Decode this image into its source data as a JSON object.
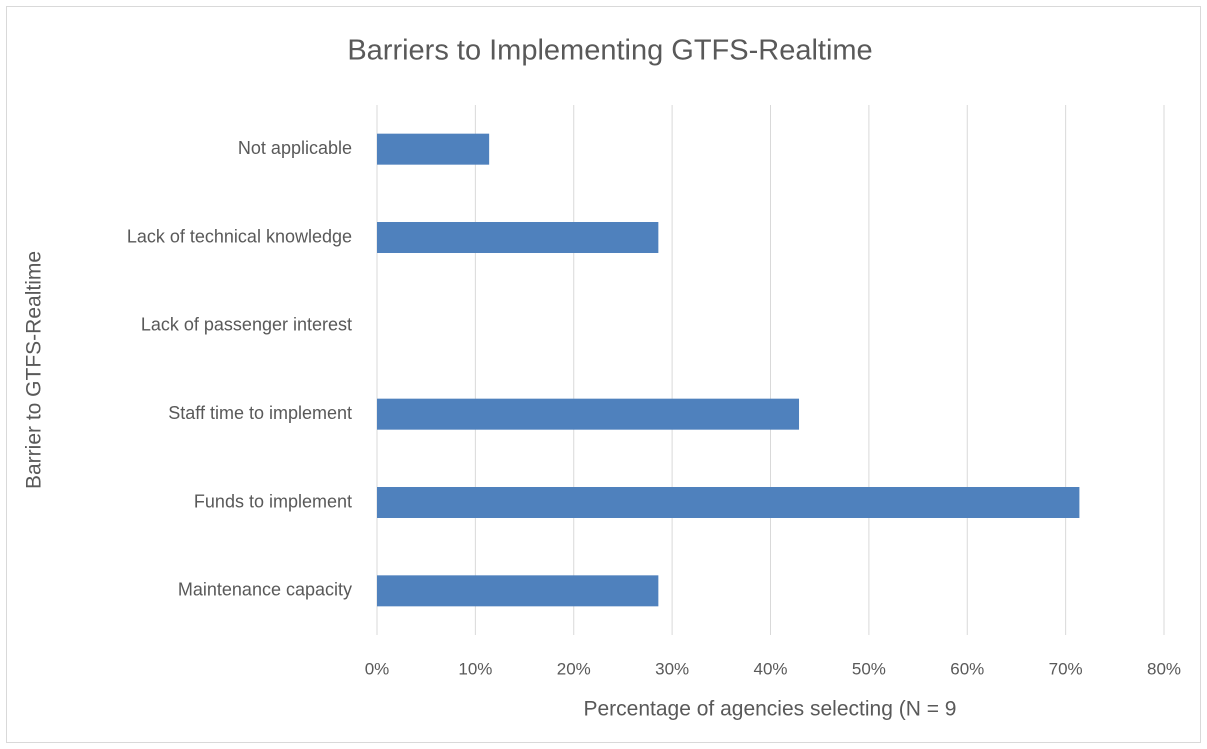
{
  "chart_data": {
    "type": "bar",
    "orientation": "horizontal",
    "title": "Barriers to Implementing GTFS-Realtime",
    "x_label": "Percentage of agencies selecting (N = 9",
    "y_label": "Barrier to GTFS-Realtime",
    "categories": [
      "Not applicable",
      "Lack of technical knowledge",
      "Lack of passenger interest",
      "Staff time to implement",
      "Funds to implement",
      "Maintenance capacity"
    ],
    "values": [
      11.4,
      28.6,
      0,
      42.9,
      71.4,
      28.6
    ],
    "color": "#4f81bd",
    "xlim": [
      0,
      80
    ],
    "xticks": [
      {
        "value": 0,
        "label": "0%"
      },
      {
        "value": 10,
        "label": "10%"
      },
      {
        "value": 20,
        "label": "20%"
      },
      {
        "value": 30,
        "label": "30%"
      },
      {
        "value": 40,
        "label": "40%"
      },
      {
        "value": 50,
        "label": "50%"
      },
      {
        "value": 60,
        "label": "60%"
      },
      {
        "value": 70,
        "label": "70%"
      },
      {
        "value": 80,
        "label": "80%"
      }
    ],
    "grid": true
  }
}
